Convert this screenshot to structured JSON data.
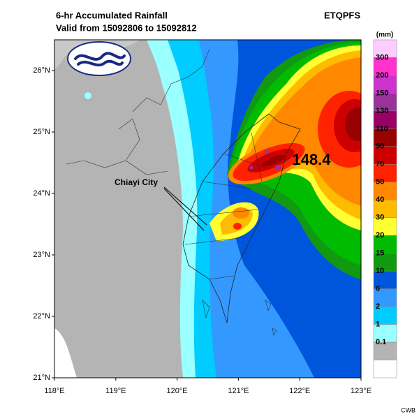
{
  "header": {
    "title": "6-hr Accumulated Rainfall",
    "subtitle": "Valid from 15092806 to 15092812",
    "product": "ETQPFS"
  },
  "map": {
    "lon_ticks": [
      {
        "value": 118,
        "label": "118°E"
      },
      {
        "value": 119,
        "label": "119°E"
      },
      {
        "value": 120,
        "label": "120°E"
      },
      {
        "value": 121,
        "label": "121°E"
      },
      {
        "value": 122,
        "label": "122°E"
      },
      {
        "value": 123,
        "label": "123°E"
      }
    ],
    "lat_ticks": [
      {
        "value": 21,
        "label": "21°N"
      },
      {
        "value": 22,
        "label": "22°N"
      },
      {
        "value": 23,
        "label": "23°N"
      },
      {
        "value": 24,
        "label": "24°N"
      },
      {
        "value": 25,
        "label": "25°N"
      },
      {
        "value": 26,
        "label": "26°N"
      }
    ],
    "max_value": 148.4,
    "place_label": "Chiayi City"
  },
  "legend": {
    "unit": "(mm)",
    "levels": [
      300,
      200,
      150,
      130,
      110,
      90,
      70,
      50,
      40,
      30,
      20,
      15,
      10,
      6,
      2,
      1,
      0.1
    ],
    "colors": [
      "#ffccff",
      "#ff33cc",
      "#cc33cc",
      "#993399",
      "#990066",
      "#990000",
      "#cc0000",
      "#ff2200",
      "#ff8800",
      "#ffbb00",
      "#ffff33",
      "#00bb00",
      "#119911",
      "#0055dd",
      "#3399ff",
      "#00ccff",
      "#99ffff",
      "#b4b4b4",
      "#ffffff"
    ]
  },
  "footer": {
    "credit": "CWB"
  }
}
